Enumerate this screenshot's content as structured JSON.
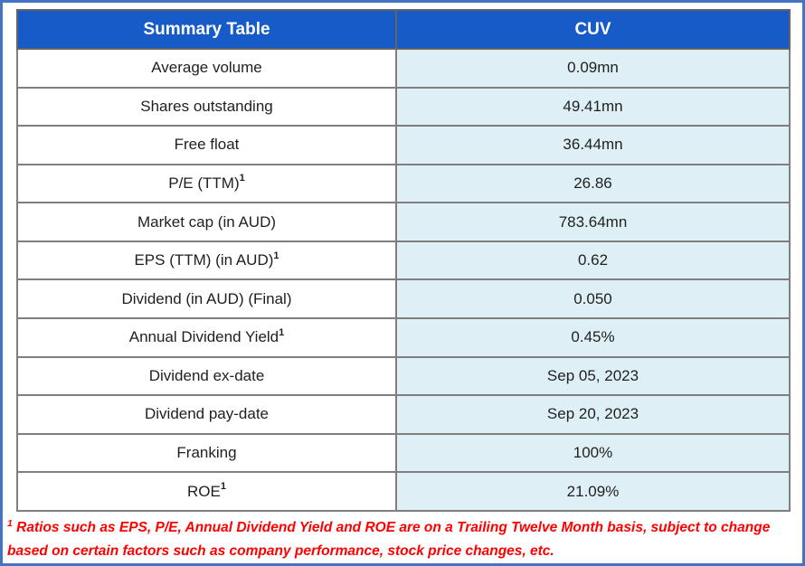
{
  "colors": {
    "outer_border": "#4472C4",
    "header_bg": "#165BC8",
    "header_text": "#FFFFFF",
    "value_cell_bg": "#DEF0F5",
    "grid_line": "#7F7F7F",
    "table_border": "#646464",
    "cell_text": "#1F1F1F",
    "footnote_text": "#FF0000"
  },
  "chart_data": {
    "type": "table",
    "title": "Summary Table",
    "columns": [
      "Summary Table",
      "CUV"
    ],
    "rows": [
      {
        "label": "Average volume",
        "superscript": "",
        "value": "0.09mn"
      },
      {
        "label": "Shares outstanding",
        "superscript": "",
        "value": "49.41mn"
      },
      {
        "label": "Free float",
        "superscript": "",
        "value": "36.44mn"
      },
      {
        "label": "P/E (TTM)",
        "superscript": "1",
        "value": "26.86"
      },
      {
        "label": "Market cap (in AUD)",
        "superscript": "",
        "value": "783.64mn"
      },
      {
        "label": "EPS (TTM) (in AUD)",
        "superscript": "1",
        "value": "0.62"
      },
      {
        "label": "Dividend (in AUD) (Final)",
        "superscript": "",
        "value": "0.050"
      },
      {
        "label": "Annual Dividend Yield",
        "superscript": "1",
        "value": "0.45%"
      },
      {
        "label": "Dividend ex-date",
        "superscript": "",
        "value": "Sep 05, 2023"
      },
      {
        "label": "Dividend pay-date",
        "superscript": "",
        "value": "Sep 20, 2023"
      },
      {
        "label": "Franking",
        "superscript": "",
        "value": "100%"
      },
      {
        "label": "ROE",
        "superscript": "1",
        "value": "21.09%"
      }
    ],
    "footnote_superscript": "1",
    "footnote": "Ratios such as EPS, P/E, Annual Dividend Yield and ROE are on a Trailing Twelve Month basis, subject to change based on certain factors such as company performance, stock price changes, etc.",
    "legend_position": "none",
    "grid": true
  }
}
